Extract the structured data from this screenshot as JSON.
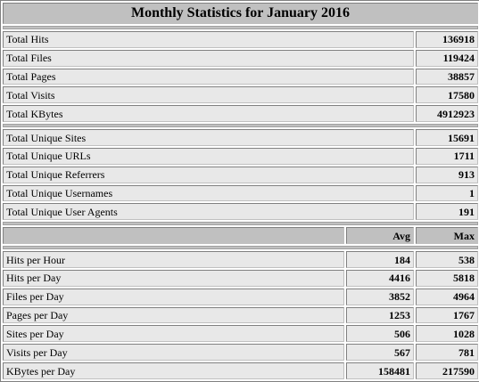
{
  "title": "Monthly Statistics for January 2016",
  "totals": [
    {
      "label": "Total Hits",
      "value": "136918"
    },
    {
      "label": "Total Files",
      "value": "119424"
    },
    {
      "label": "Total Pages",
      "value": "38857"
    },
    {
      "label": "Total Visits",
      "value": "17580"
    },
    {
      "label": "Total KBytes",
      "value": "4912923"
    }
  ],
  "uniques": [
    {
      "label": "Total Unique Sites",
      "value": "15691"
    },
    {
      "label": "Total Unique URLs",
      "value": "1711"
    },
    {
      "label": "Total Unique Referrers",
      "value": "913"
    },
    {
      "label": "Total Unique Usernames",
      "value": "1"
    },
    {
      "label": "Total Unique User Agents",
      "value": "191"
    }
  ],
  "columns": {
    "avg": "Avg",
    "max": "Max"
  },
  "rates": [
    {
      "label": "Hits per Hour",
      "avg": "184",
      "max": "538"
    },
    {
      "label": "Hits per Day",
      "avg": "4416",
      "max": "5818"
    },
    {
      "label": "Files per Day",
      "avg": "3852",
      "max": "4964"
    },
    {
      "label": "Pages per Day",
      "avg": "1253",
      "max": "1767"
    },
    {
      "label": "Sites per Day",
      "avg": "506",
      "max": "1028"
    },
    {
      "label": "Visits per Day",
      "avg": "567",
      "max": "781"
    },
    {
      "label": "KBytes per Day",
      "avg": "158481",
      "max": "217590"
    }
  ]
}
